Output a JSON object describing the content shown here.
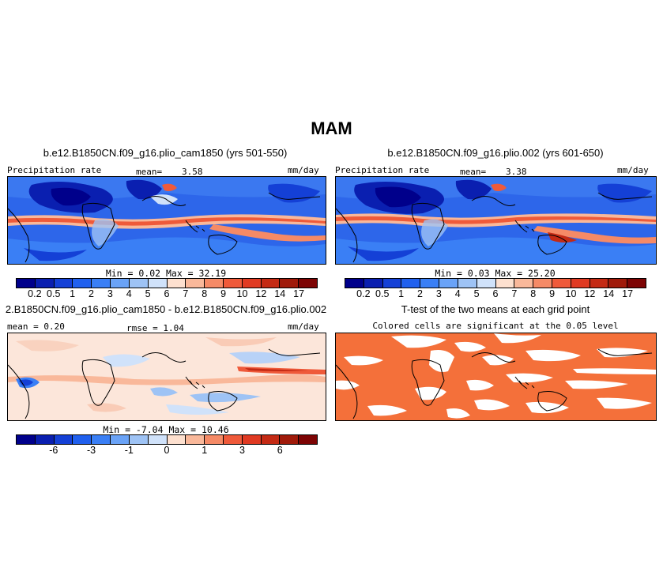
{
  "title": "MAM",
  "panels": {
    "p1": {
      "title": "b.e12.B1850CN.f09_g16.plio_cam1850 (yrs 501-550)",
      "left_label": "Precipitation rate",
      "mean_label": "mean=",
      "mean_value": "3.58",
      "units": "mm/day",
      "stats": "Min =    0.02 Max =   32.19",
      "min": 0.02,
      "max": 32.19
    },
    "p2": {
      "title": "b.e12.B1850CN.f09_g16.plio.002 (yrs 601-650)",
      "left_label": "Precipitation rate",
      "mean_label": "mean=",
      "mean_value": "3.38",
      "units": "mm/day",
      "stats": "Min =    0.03 Max =   25.20",
      "min": 0.03,
      "max": 25.2
    },
    "p3": {
      "title": "2.B1850CN.f09_g16.plio_cam1850 - b.e12.B1850CN.f09_g16.plio.002",
      "left_label": "mean =  0.20",
      "mid_label": "rmse =   1.04",
      "mean_value": "0.20",
      "rmse_value": "1.04",
      "units": "mm/day",
      "stats": "Min =  -7.04 Max =  10.46",
      "min": -7.04,
      "max": 10.46
    },
    "p4": {
      "title": "T-test of the two means at each grid point",
      "subtitle": "Colored cells are significant at the 0.05 level",
      "fill_color": "#f4703a"
    }
  },
  "colorbar_precip": {
    "colors": [
      "#00008b",
      "#0a1fb0",
      "#1440d6",
      "#2060ee",
      "#3a7ff5",
      "#6aa3f7",
      "#9ec3f5",
      "#d0e2fa",
      "#fde0cf",
      "#f9b89a",
      "#f58a66",
      "#ef5a3a",
      "#e03a22",
      "#c42a14",
      "#a01a0a",
      "#7d0404"
    ],
    "labels": [
      "0.2",
      "0.5",
      "1",
      "2",
      "3",
      "4",
      "5",
      "6",
      "7",
      "8",
      "9",
      "10",
      "12",
      "14",
      "17"
    ]
  },
  "colorbar_diff": {
    "colors": [
      "#00008b",
      "#0a1fb0",
      "#1440d6",
      "#2060ee",
      "#3a7ff5",
      "#6aa3f7",
      "#9ec3f5",
      "#d0e2fa",
      "#fde0cf",
      "#f9b89a",
      "#f58a66",
      "#ef5a3a",
      "#e03a22",
      "#c42a14",
      "#a01a0a",
      "#7d0404"
    ],
    "labels": [
      "-6",
      "-3",
      "-1",
      "0",
      "1",
      "3",
      "6"
    ],
    "label_positions": [
      2,
      4,
      6,
      8,
      10,
      12,
      14
    ]
  }
}
